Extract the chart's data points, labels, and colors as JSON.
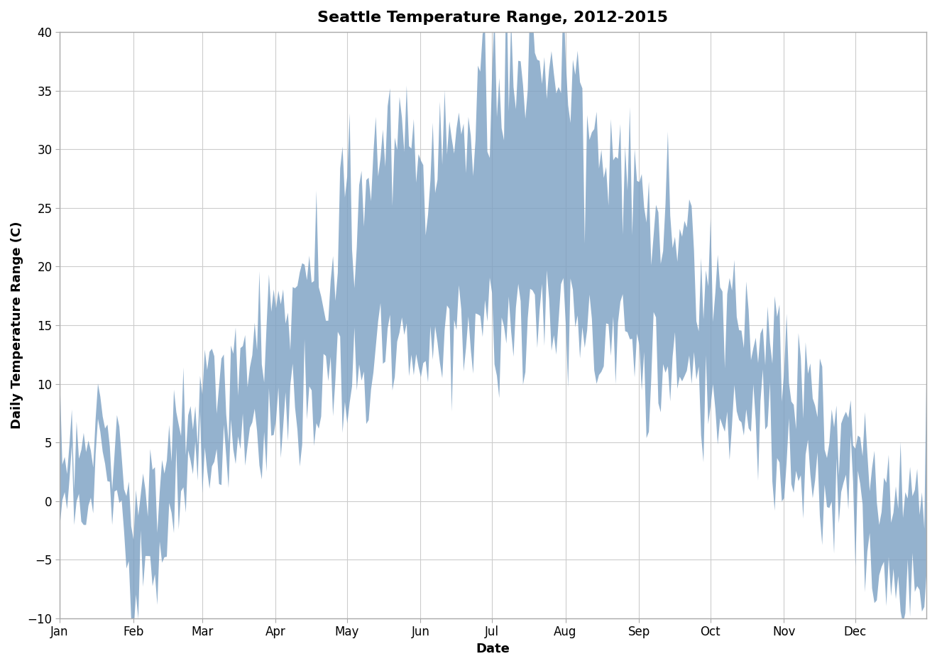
{
  "title": "Seattle Temperature Range, 2012-2015",
  "xlabel": "Date",
  "ylabel": "Daily Temperature Range (C)",
  "fill_color": "#7a9fc2",
  "fill_alpha": 0.8,
  "ylim": [
    -10,
    40
  ],
  "yticks": [
    -10,
    -5,
    0,
    5,
    10,
    15,
    20,
    25,
    30,
    35,
    40
  ],
  "background_color": "#ffffff",
  "grid_color": "#cccccc",
  "title_fontsize": 16,
  "label_fontsize": 13,
  "tick_fontsize": 12
}
